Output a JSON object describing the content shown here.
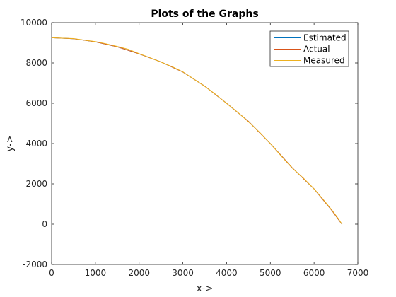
{
  "chart_data": {
    "type": "line",
    "title": "Plots of the Graphs",
    "xlabel": "x->",
    "ylabel": "y->",
    "xlim": [
      0,
      7000
    ],
    "ylim": [
      -2000,
      10000
    ],
    "xticks": [
      0,
      1000,
      2000,
      3000,
      4000,
      5000,
      6000,
      7000
    ],
    "yticks": [
      -2000,
      0,
      2000,
      4000,
      6000,
      8000,
      10000
    ],
    "grid": false,
    "legend_position": "top-right",
    "series": [
      {
        "name": "Estimated",
        "color": "#0072BD",
        "x": [
          0,
          500,
          1000,
          1500,
          2000,
          2500,
          3000,
          3500,
          4000,
          4500,
          5000,
          5500,
          6000,
          6400,
          6640
        ],
        "y": [
          9250,
          9200,
          9050,
          8800,
          8450,
          8050,
          7550,
          6850,
          6000,
          5100,
          4000,
          2800,
          1750,
          700,
          -10
        ]
      },
      {
        "name": "Actual",
        "color": "#D95319",
        "x": [
          0,
          500,
          1000,
          1500,
          2000,
          2500,
          3000,
          3500,
          4000,
          4500,
          5000,
          5500,
          6000,
          6400,
          6640
        ],
        "y": [
          9250,
          9200,
          9050,
          8800,
          8450,
          8050,
          7550,
          6850,
          6000,
          5100,
          4000,
          2800,
          1750,
          700,
          -10
        ]
      },
      {
        "name": "Measured",
        "color": "#EDB120",
        "x": [
          0,
          250,
          500,
          750,
          1000,
          1250,
          1500,
          1750,
          2000,
          2250,
          2500,
          2750,
          3000,
          3250,
          3500,
          3750,
          4000,
          4250,
          4500,
          4750,
          5000,
          5250,
          5500,
          5750,
          6000,
          6200,
          6400,
          6550,
          6640
        ],
        "y": [
          9250,
          9230,
          9210,
          9130,
          9060,
          8950,
          8820,
          8680,
          8460,
          8260,
          8040,
          7820,
          7560,
          7200,
          6840,
          6440,
          5990,
          5560,
          5080,
          4570,
          4000,
          3380,
          2780,
          2300,
          1750,
          1250,
          720,
          290,
          -10
        ]
      }
    ]
  }
}
